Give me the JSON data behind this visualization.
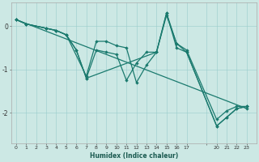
{
  "xlabel": "Humidex (Indice chaleur)",
  "bg_color": "#cce8e4",
  "line_color": "#1a7a6e",
  "grid_color": "#99cccc",
  "series": [
    {
      "x": [
        0,
        1,
        3,
        4,
        5,
        7,
        8,
        9,
        10,
        11,
        12,
        13,
        14,
        15,
        16,
        17,
        20,
        21,
        22,
        23
      ],
      "y": [
        0.15,
        0.05,
        -0.05,
        -0.1,
        -0.2,
        -1.15,
        -0.35,
        -0.35,
        -0.45,
        -0.5,
        -1.3,
        -0.9,
        -0.6,
        0.25,
        -0.4,
        -0.55,
        -2.15,
        -1.95,
        -1.85,
        -1.85
      ]
    },
    {
      "x": [
        0,
        1,
        3,
        4,
        5,
        6,
        7,
        8,
        9,
        10,
        11,
        12,
        13,
        14,
        15,
        16,
        17,
        20,
        21,
        22,
        23
      ],
      "y": [
        0.15,
        0.05,
        -0.05,
        -0.1,
        -0.2,
        -0.55,
        -1.2,
        -0.55,
        -0.6,
        -0.65,
        -1.25,
        -0.85,
        -0.6,
        -0.6,
        0.3,
        -0.5,
        -0.6,
        -2.3,
        -2.1,
        -1.9,
        -1.85
      ]
    },
    {
      "x": [
        0,
        1,
        3,
        4,
        5,
        6,
        7,
        14,
        15,
        16,
        17,
        20,
        21,
        22,
        23
      ],
      "y": [
        0.15,
        0.05,
        -0.05,
        -0.1,
        -0.2,
        -0.55,
        -1.2,
        -0.6,
        0.3,
        -0.4,
        -0.6,
        -2.3,
        -2.1,
        -1.9,
        -1.85
      ]
    },
    {
      "x": [
        0,
        23
      ],
      "y": [
        0.15,
        -1.9
      ]
    }
  ],
  "xlim": [
    -0.5,
    24.0
  ],
  "ylim": [
    -2.7,
    0.55
  ],
  "yticks": [
    0,
    -1,
    -2
  ],
  "xtick_labels": [
    "0",
    "1",
    "2",
    "3",
    "4",
    "5",
    "6",
    "7",
    "8",
    "9",
    "10",
    "11",
    "12",
    "13",
    "14",
    "15",
    "16",
    "17",
    "",
    "20",
    "21",
    "22",
    "23"
  ],
  "xtick_positions": [
    0,
    1,
    2,
    3,
    4,
    5,
    6,
    7,
    8,
    9,
    10,
    11,
    12,
    13,
    14,
    15,
    16,
    17,
    19,
    20,
    21,
    22,
    23
  ]
}
